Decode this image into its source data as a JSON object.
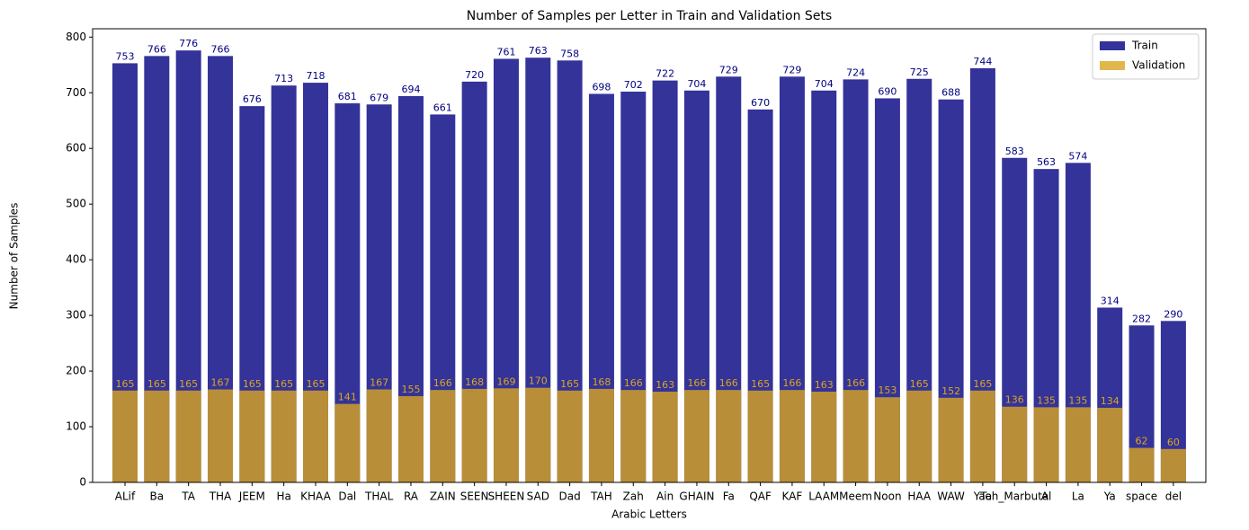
{
  "chart_data": {
    "type": "bar",
    "title": "Number of Samples per Letter in Train and Validation Sets",
    "x_label": "Arabic Letters",
    "y_label": "Number of Samples",
    "categories": [
      "ALif",
      "Ba",
      "TA",
      "THA",
      "JEEM",
      "Ha",
      "KHAA",
      "Dal",
      "THAL",
      "RA",
      "ZAIN",
      "SEEN",
      "SHEEN",
      "SAD",
      "Dad",
      "TAH",
      "Zah",
      "Ain",
      "GHAIN",
      "Fa",
      "QAF",
      "KAF",
      "LAAM",
      "Meem",
      "Noon",
      "HAA",
      "WAW",
      "Yaa",
      "Teh_Marbuta",
      "Al",
      "La",
      "Ya",
      "space",
      "del"
    ],
    "series": [
      {
        "name": "Train",
        "color": "navy",
        "alpha": 0.8,
        "values": [
          753,
          766,
          776,
          766,
          676,
          713,
          718,
          681,
          679,
          694,
          661,
          720,
          761,
          763,
          758,
          698,
          702,
          722,
          704,
          729,
          670,
          729,
          704,
          724,
          690,
          725,
          688,
          744,
          583,
          563,
          574,
          314,
          282,
          290
        ]
      },
      {
        "name": "Validation",
        "color": "goldenrod",
        "alpha": 0.8,
        "values": [
          165,
          165,
          165,
          167,
          165,
          165,
          165,
          141,
          167,
          155,
          166,
          168,
          169,
          170,
          165,
          168,
          166,
          163,
          166,
          166,
          165,
          166,
          163,
          166,
          153,
          165,
          152,
          165,
          136,
          135,
          135,
          134,
          62,
          60
        ]
      }
    ],
    "overlap": true,
    "ylim": [
      0,
      815
    ],
    "yticks": [
      0,
      100,
      200,
      300,
      400,
      500,
      600,
      700,
      800
    ],
    "legend": "upper right"
  }
}
